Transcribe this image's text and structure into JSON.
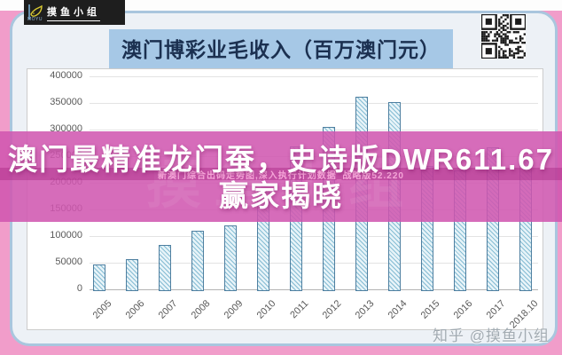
{
  "brand": {
    "name": "摸鱼小组",
    "sub": "MOYU"
  },
  "header": {
    "title": "澳门博彩业毛收入（百万澳门元）"
  },
  "overlay": {
    "line1": "澳门最精准龙门蚕，史诗版DWR611.67",
    "line2": "赢家揭晓",
    "watermark_small": "新澳门综合出码走势图,深入执行计划数据_战略版52.220",
    "watermark_faint": "摸鱼小组",
    "bg_color": "#d056b0"
  },
  "footer": {
    "credit": "知乎 @摸鱼小组"
  },
  "colors": {
    "frame_pink": "#f19dca",
    "card_fill": "#edf1f6",
    "card_border": "#a9c6de",
    "title_bg": "#a6c8e6",
    "title_text": "#1b3050",
    "bar_fill": "#e7f3f8",
    "bar_hatch": "#85bdd4",
    "bar_border": "#4e7fa0"
  },
  "chart_data": {
    "type": "bar",
    "title": "澳门博彩业毛收入（百万澳门元）",
    "categories": [
      "2005",
      "2006",
      "2007",
      "2008",
      "2009",
      "2010",
      "2011",
      "2012",
      "2013",
      "2014",
      "2015",
      "2016",
      "2017",
      "2018.10"
    ],
    "values": [
      47000,
      57500,
      84000,
      110000,
      120000,
      190000,
      269000,
      305000,
      361000,
      352000,
      232000,
      223000,
      266000,
      250000
    ],
    "yticks": [
      0,
      50000,
      100000,
      150000,
      200000,
      250000,
      300000,
      350000,
      400000
    ],
    "ylim": [
      0,
      400000
    ],
    "xlabel": "",
    "ylabel": "",
    "grid": true,
    "legend": false
  }
}
